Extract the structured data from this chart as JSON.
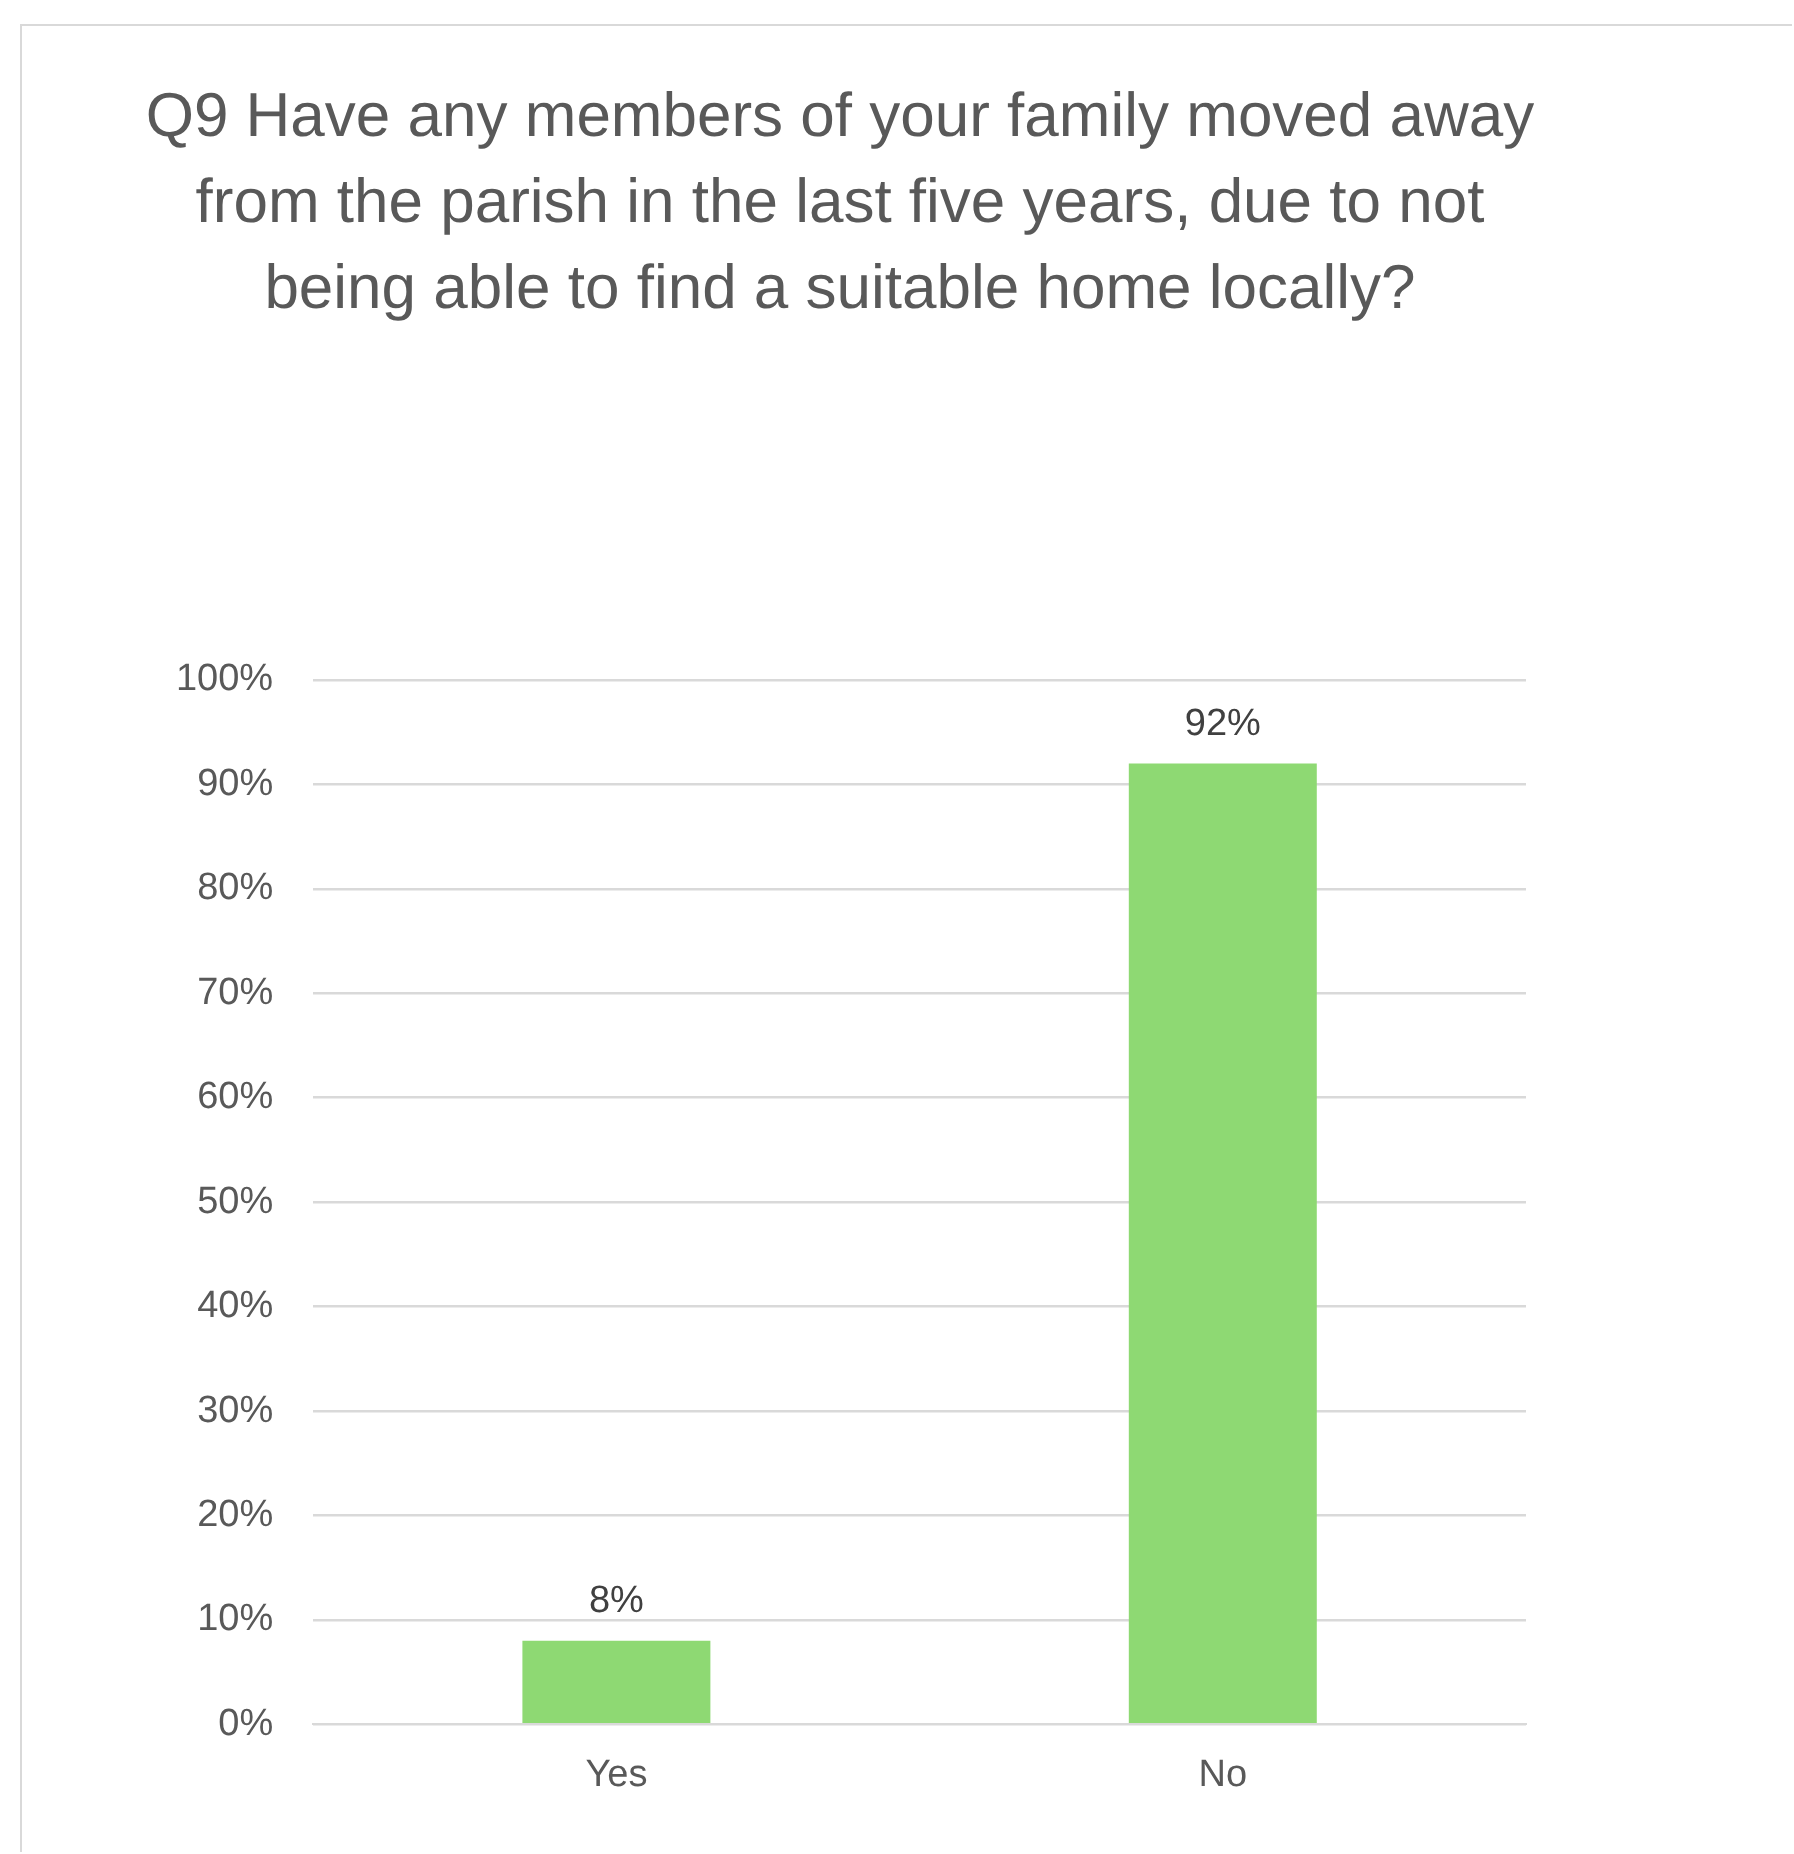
{
  "chart_data": {
    "type": "bar",
    "title": "Q9 Have any members of your family moved away from the parish in the last five years, due to not being able to find a suitable home locally?",
    "categories": [
      "Yes",
      "No"
    ],
    "values": [
      8,
      92
    ],
    "value_labels": [
      "8%",
      "92%"
    ],
    "color": "#8ed973",
    "ylim": [
      0,
      100
    ],
    "yticks": [
      {
        "value": 0,
        "label": "0%"
      },
      {
        "value": 10,
        "label": "10%"
      },
      {
        "value": 20,
        "label": "20%"
      },
      {
        "value": 30,
        "label": "30%"
      },
      {
        "value": 40,
        "label": "40%"
      },
      {
        "value": 50,
        "label": "50%"
      },
      {
        "value": 60,
        "label": "60%"
      },
      {
        "value": 70,
        "label": "70%"
      },
      {
        "value": 80,
        "label": "80%"
      },
      {
        "value": 90,
        "label": "90%"
      },
      {
        "value": 100,
        "label": "100%"
      }
    ],
    "grid": "y",
    "legend": false
  }
}
